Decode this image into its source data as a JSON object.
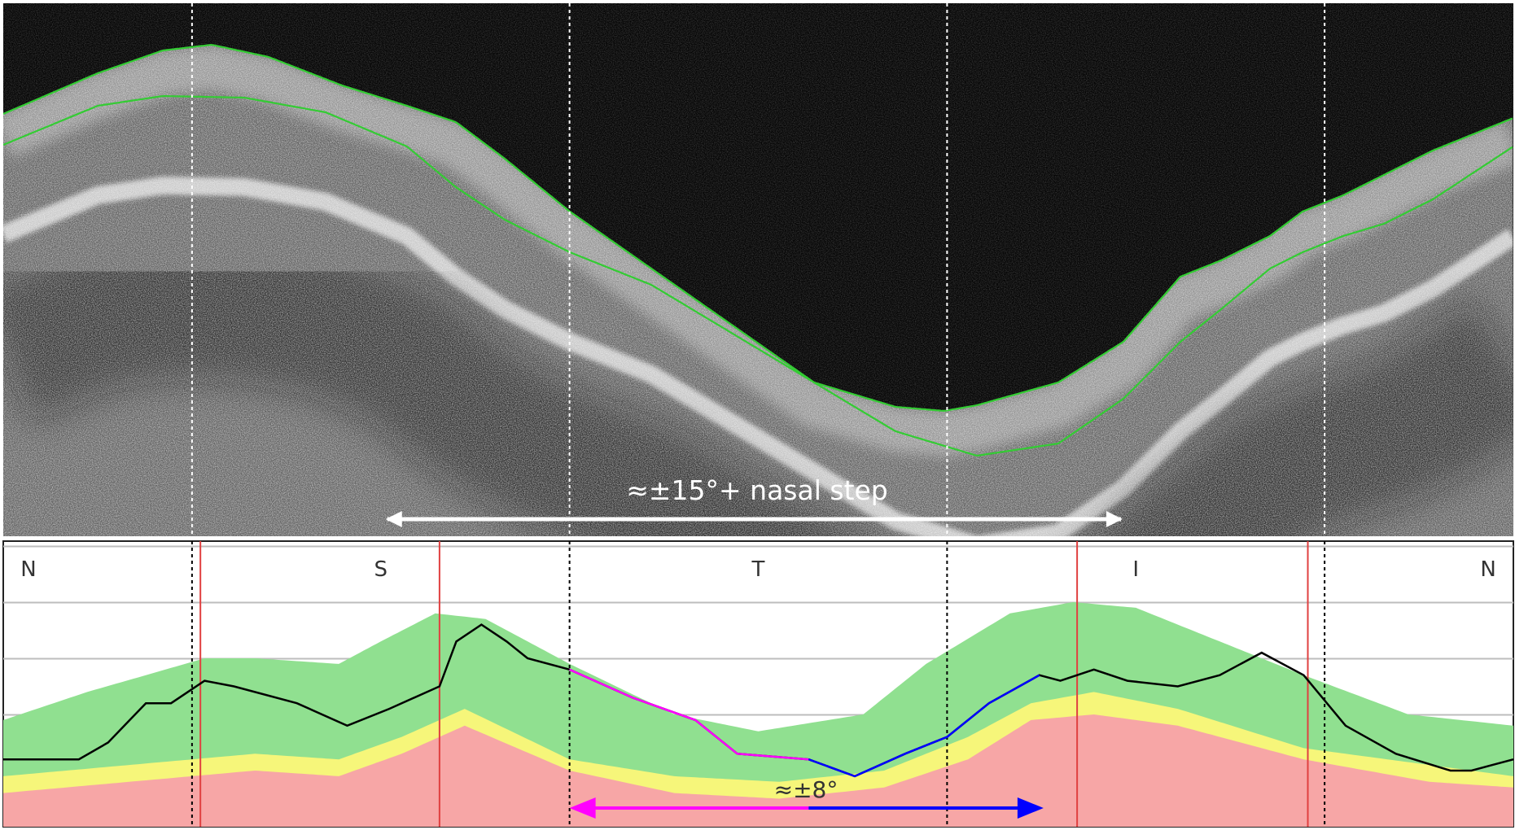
{
  "figure": {
    "oct_annotation": "≈±15°+ nasal step",
    "profile_annotation": "≈±8°"
  },
  "chart_data": {
    "type": "area",
    "x_range": [
      0,
      360
    ],
    "y_range": [
      0,
      5
    ],
    "grid": true,
    "sectors": [
      "N",
      "S",
      "T",
      "I",
      "N"
    ],
    "colors": {
      "normal_band": "#90e090",
      "borderline_band": "#f6f67a",
      "abnormal_band": "#f7a6a6",
      "measured": "#000000",
      "highlight_left": "#ff00ff",
      "highlight_right": "#0000ff",
      "sector_boundary_dotted": "#000000",
      "reference_line_red": "#e04040",
      "rnfl_boundary": "#33cc33"
    },
    "sector_boundaries_deg": [
      45,
      135,
      225,
      315
    ],
    "red_reference_lines_deg": [
      47,
      104,
      256,
      311
    ],
    "normal_upper": {
      "x": [
        0,
        20,
        48,
        60,
        80,
        90,
        103,
        115,
        135,
        160,
        180,
        205,
        220,
        240,
        255,
        270,
        290,
        310,
        335,
        360
      ],
      "y": [
        1.9,
        2.4,
        3.0,
        3.0,
        2.9,
        3.3,
        3.8,
        3.7,
        2.9,
        2.0,
        1.7,
        2.0,
        2.9,
        3.8,
        4.0,
        3.9,
        3.3,
        2.7,
        2.0,
        1.8
      ]
    },
    "borderline_upper": {
      "x": [
        0,
        30,
        60,
        80,
        95,
        110,
        135,
        160,
        185,
        210,
        230,
        245,
        260,
        280,
        310,
        340,
        360
      ],
      "y": [
        0.9,
        1.1,
        1.3,
        1.2,
        1.6,
        2.1,
        1.2,
        0.9,
        0.8,
        1.0,
        1.6,
        2.2,
        2.4,
        2.1,
        1.4,
        1.1,
        0.9
      ]
    },
    "abnormal_upper": {
      "x": [
        0,
        30,
        60,
        80,
        95,
        110,
        135,
        160,
        185,
        210,
        230,
        245,
        260,
        280,
        310,
        340,
        360
      ],
      "y": [
        0.6,
        0.8,
        1.0,
        0.9,
        1.3,
        1.8,
        1.0,
        0.6,
        0.5,
        0.7,
        1.2,
        1.9,
        2.0,
        1.8,
        1.2,
        0.8,
        0.7
      ]
    },
    "measured": {
      "x": [
        0,
        18,
        25,
        34,
        40,
        48,
        55,
        70,
        82,
        92,
        104,
        108,
        114,
        120,
        125,
        135,
        150,
        165,
        175,
        192,
        203,
        215,
        225,
        235,
        247,
        252,
        260,
        268,
        280,
        290,
        300,
        310,
        320,
        332,
        345,
        350,
        355,
        360
      ],
      "y": [
        1.2,
        1.2,
        1.5,
        2.2,
        2.2,
        2.6,
        2.5,
        2.2,
        1.8,
        2.1,
        2.5,
        3.3,
        3.6,
        3.3,
        3.0,
        2.8,
        2.3,
        1.9,
        1.3,
        1.2,
        0.9,
        1.3,
        1.6,
        2.2,
        2.7,
        2.6,
        2.8,
        2.6,
        2.5,
        2.7,
        3.1,
        2.7,
        1.8,
        1.3,
        1.0,
        1.0,
        1.1,
        1.2
      ]
    },
    "highlight_left": {
      "x": [
        135,
        150,
        165,
        175,
        192
      ],
      "y": [
        2.8,
        2.3,
        1.9,
        1.3,
        1.2
      ]
    },
    "highlight_right": {
      "x": [
        192,
        203,
        215,
        225,
        235,
        247
      ],
      "y": [
        1.2,
        0.9,
        1.3,
        1.6,
        2.2,
        2.7
      ]
    },
    "profile_arrow_deg": [
      135,
      248
    ],
    "oct_arrow_deg": [
      90,
      268
    ]
  }
}
